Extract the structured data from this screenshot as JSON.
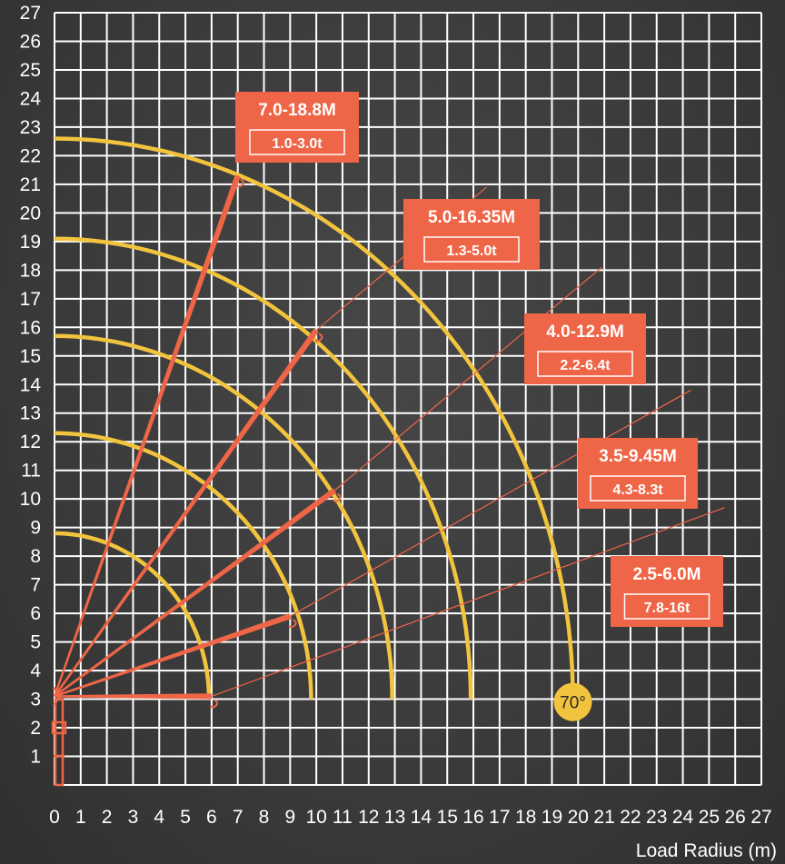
{
  "chart_data": {
    "type": "line",
    "title": "",
    "xlabel": "Load Radius (m)",
    "ylabel": "",
    "xlim": [
      0,
      27
    ],
    "ylim": [
      0,
      27
    ],
    "x_ticks": [
      "0",
      "1",
      "2",
      "3",
      "4",
      "5",
      "6",
      "7",
      "8",
      "9",
      "10",
      "11",
      "12",
      "13",
      "14",
      "15",
      "16",
      "17",
      "18",
      "19",
      "20",
      "21",
      "22",
      "23",
      "24",
      "25",
      "26",
      "27"
    ],
    "y_ticks": [
      "1",
      "2",
      "3",
      "4",
      "5",
      "6",
      "7",
      "8",
      "9",
      "10",
      "11",
      "12",
      "13",
      "14",
      "15",
      "16",
      "17",
      "18",
      "19",
      "20",
      "21",
      "22",
      "23",
      "24",
      "25",
      "26",
      "27"
    ],
    "grid": true,
    "boom_pivot": {
      "x": 0,
      "y": 3.1
    },
    "booms": [
      {
        "length_label": "7.0-18.8M",
        "load_label": "1.0-3.0t",
        "tip": {
          "x": 7.0,
          "y": 21.3
        },
        "pointer_end": {
          "x": 7.0,
          "y": 21.3
        }
      },
      {
        "length_label": "5.0-16.35M",
        "load_label": "1.3-5.0t",
        "tip": {
          "x": 10.0,
          "y": 15.9
        },
        "pointer_end": {
          "x": 16.5,
          "y": 20.9
        }
      },
      {
        "length_label": "4.0-12.9M",
        "load_label": "2.2-6.4t",
        "tip": {
          "x": 10.7,
          "y": 10.3
        },
        "pointer_end": {
          "x": 20.9,
          "y": 18.1
        }
      },
      {
        "length_label": "3.5-9.45M",
        "load_label": "4.3-8.3t",
        "tip": {
          "x": 9.0,
          "y": 5.9
        },
        "pointer_end": {
          "x": 24.3,
          "y": 13.8
        }
      },
      {
        "length_label": "2.5-6.0M",
        "load_label": "7.8-16t",
        "tip": {
          "x": 6.0,
          "y": 3.1
        },
        "pointer_end": {
          "x": 25.6,
          "y": 9.7
        }
      }
    ],
    "envelopes": [
      {
        "radius": 5.9,
        "top_y": 8.8
      },
      {
        "radius": 9.8,
        "top_y": 12.3
      },
      {
        "radius": 12.9,
        "top_y": 15.7
      },
      {
        "radius": 15.9,
        "top_y": 19.1
      },
      {
        "radius": 19.8,
        "top_y": 22.6
      }
    ],
    "angle_badge": {
      "label": "70°",
      "x": 19.8,
      "y": 2.9
    },
    "colors": {
      "boom": "#ee6547",
      "envelope": "#f2c43e",
      "grid": "#ffffff",
      "badge": "#f2c43e"
    }
  }
}
